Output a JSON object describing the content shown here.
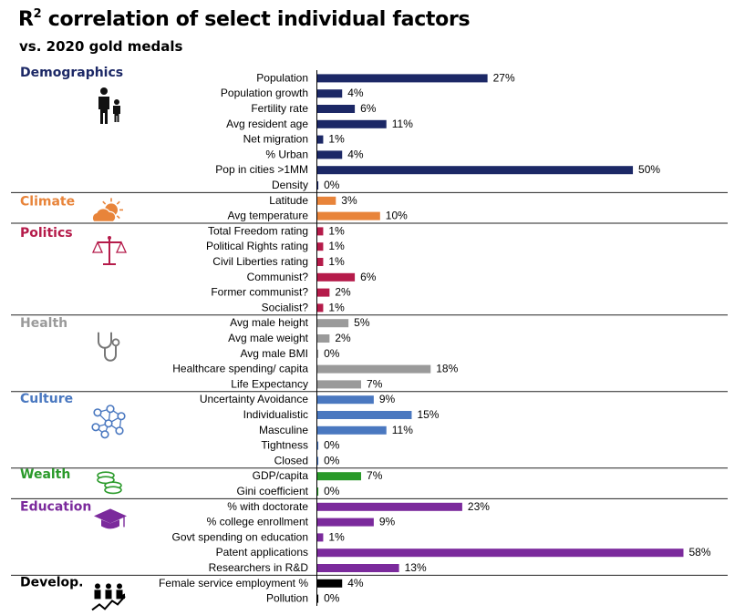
{
  "title_main": "R",
  "title_sup": "2",
  "title_rest": " correlation of select individual factors",
  "subtitle": "vs. 2020 gold medals",
  "chart_data": {
    "type": "bar",
    "orientation": "horizontal",
    "unit": "%",
    "xlim": [
      0,
      60
    ],
    "groups": [
      {
        "name": "Demographics",
        "color": "#1c2866",
        "icon": "family-icon",
        "items": [
          {
            "label": "Population",
            "value": 27
          },
          {
            "label": "Population growth",
            "value": 4
          },
          {
            "label": "Fertility rate",
            "value": 6
          },
          {
            "label": "Avg resident age",
            "value": 11
          },
          {
            "label": "Net migration",
            "value": 1
          },
          {
            "label": "% Urban",
            "value": 4
          },
          {
            "label": "Pop in cities >1MM",
            "value": 50
          },
          {
            "label": "Density",
            "value": 0
          }
        ]
      },
      {
        "name": "Climate",
        "color": "#e8843a",
        "icon": "sun-cloud-icon",
        "items": [
          {
            "label": "Latitude",
            "value": 3
          },
          {
            "label": "Avg temperature",
            "value": 10
          }
        ]
      },
      {
        "name": "Politics",
        "color": "#b51b4a",
        "icon": "scales-icon",
        "items": [
          {
            "label": "Total Freedom rating",
            "value": 1
          },
          {
            "label": "Political Rights rating",
            "value": 1
          },
          {
            "label": "Civil Liberties rating",
            "value": 1
          },
          {
            "label": "Communist?",
            "value": 6
          },
          {
            "label": "Former communist?",
            "value": 2
          },
          {
            "label": "Socialist?",
            "value": 1
          }
        ]
      },
      {
        "name": "Health",
        "color": "#9a9a9a",
        "icon": "stethoscope-icon",
        "items": [
          {
            "label": "Avg male height",
            "value": 5
          },
          {
            "label": "Avg male weight",
            "value": 2
          },
          {
            "label": "Avg male BMI",
            "value": 0
          },
          {
            "label": "Healthcare spending/ capita",
            "value": 18
          },
          {
            "label": "Life Expectancy",
            "value": 7
          }
        ]
      },
      {
        "name": "Culture",
        "color": "#4a78c0",
        "icon": "network-icon",
        "items": [
          {
            "label": "Uncertainty Avoidance",
            "value": 9
          },
          {
            "label": "Individualistic",
            "value": 15
          },
          {
            "label": "Masculine",
            "value": 11
          },
          {
            "label": "Tightness",
            "value": 0
          },
          {
            "label": "Closed",
            "value": 0
          }
        ]
      },
      {
        "name": "Wealth",
        "color": "#2a9a2a",
        "icon": "coins-icon",
        "items": [
          {
            "label": "GDP/capita",
            "value": 7
          },
          {
            "label": "Gini coefficient",
            "value": 0
          }
        ]
      },
      {
        "name": "Education",
        "color": "#7b2a9c",
        "icon": "graduation-cap-icon",
        "items": [
          {
            "label": "% with doctorate",
            "value": 23
          },
          {
            "label": "% college enrollment",
            "value": 9
          },
          {
            "label": "Govt spending on education",
            "value": 1
          },
          {
            "label": "Patent applications",
            "value": 58
          },
          {
            "label": "Researchers in R&D",
            "value": 13
          }
        ]
      },
      {
        "name": "Develop.",
        "color": "#000000",
        "icon": "growth-people-icon",
        "items": [
          {
            "label": "Female service employment %",
            "value": 4
          },
          {
            "label": "Pollution",
            "value": 0
          }
        ]
      }
    ]
  }
}
